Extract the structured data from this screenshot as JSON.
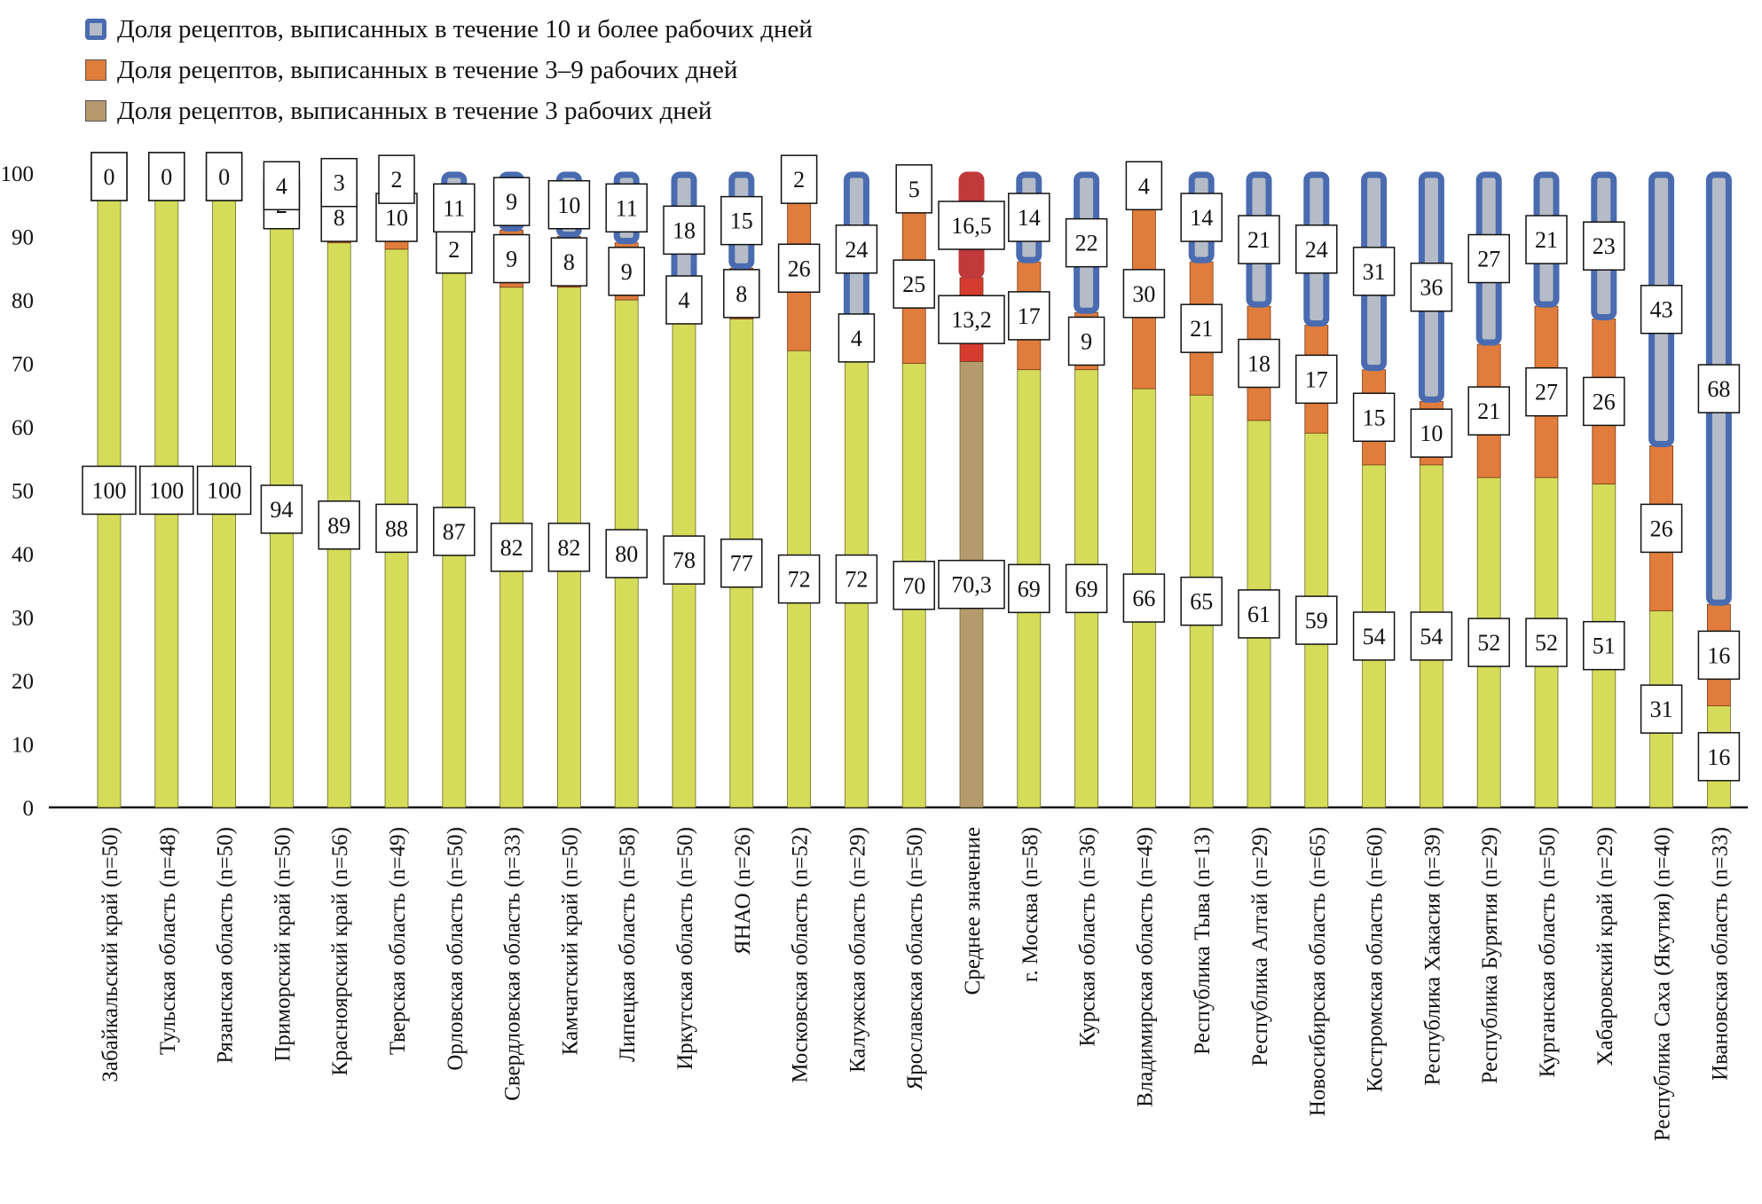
{
  "chart_data": {
    "type": "bar",
    "stacked": true,
    "ylim": [
      0,
      100
    ],
    "yticks": [
      0,
      10,
      20,
      30,
      40,
      50,
      60,
      70,
      80,
      90,
      100
    ],
    "grid": false,
    "legend_position": "top-left",
    "categories": [
      "Забайкальский край (n=50)",
      "Тульская область (n=48)",
      "Рязанская область (n=50)",
      "Приморский край (n=50)",
      "Красноярский край (n=56)",
      "Тверская область (n=49)",
      "Орловская область (n=50)",
      "Свердловская область (n=33)",
      "Камчатский край (n=50)",
      "Липецкая область (n=58)",
      "Иркутская область (n=50)",
      "ЯНАО (n=26)",
      "Московская область (n=52)",
      "Калужская область (n=29)",
      "Ярославская область (n=50)",
      "Среднее значение",
      "г. Москва (n=58)",
      "Курская область (n=36)",
      "Владимирская область (n=49)",
      "Республика Тыва (n=13)",
      "Республика Алтай (n=29)",
      "Новосибирская область (n=65)",
      "Костромская область (n=60)",
      "Республика Хакасия (n=39)",
      "Республика Бурятия (n=29)",
      "Курганская область (n=50)",
      "Хабаровский край (n=29)",
      "Республика Саха (Якутия) (n=40)",
      "Ивановская область (n=33)"
    ],
    "series": [
      {
        "name": "Доля рецептов, выписанных в течение 3 рабочих дней",
        "values": [
          100,
          100,
          100,
          94,
          89,
          88,
          87,
          82,
          82,
          80,
          78,
          77,
          72,
          72,
          70,
          70.3,
          69,
          69,
          66,
          65,
          61,
          59,
          54,
          54,
          52,
          52,
          51,
          31,
          16
        ],
        "labels": [
          "100",
          "100",
          "100",
          "94",
          "89",
          "88",
          "87",
          "82",
          "82",
          "80",
          "78",
          "77",
          "72",
          "72",
          "70",
          "70,3",
          "69",
          "69",
          "66",
          "65",
          "61",
          "59",
          "54",
          "54",
          "52",
          "52",
          "51",
          "31",
          "16"
        ],
        "color": "#d4dc5a",
        "mean_color": "#b59a6e"
      },
      {
        "name": "Доля рецептов, выписанных в течение 3–9 рабочих дней",
        "values": [
          0,
          0,
          0,
          2,
          8,
          10,
          2,
          9,
          8,
          9,
          4,
          8,
          26,
          4,
          25,
          13.2,
          17,
          9,
          30,
          21,
          18,
          17,
          15,
          10,
          21,
          27,
          26,
          26,
          16
        ],
        "labels": [
          "0",
          "0",
          "0",
          "2",
          "8",
          "10",
          "2",
          "9",
          "8",
          "9",
          "4",
          "8",
          "26",
          "4",
          "25",
          "13,2",
          "17",
          "9",
          "30",
          "21",
          "18",
          "17",
          "15",
          "10",
          "21",
          "27",
          "26",
          "26",
          "16"
        ],
        "color": "#e07c3c",
        "mean_color": "#d63b2f"
      },
      {
        "name": "Доля рецептов, выписанных в течение 10 и более рабочих дней",
        "values": [
          0,
          0,
          0,
          4,
          3,
          2,
          11,
          9,
          10,
          11,
          18,
          15,
          2,
          24,
          5,
          16.5,
          14,
          22,
          4,
          14,
          21,
          24,
          31,
          36,
          27,
          21,
          23,
          43,
          68
        ],
        "labels": [
          "0",
          "0",
          "0",
          "4",
          "3",
          "2",
          "11",
          "9",
          "10",
          "11",
          "18",
          "15",
          "2",
          "24",
          "5",
          "16,5",
          "14",
          "22",
          "4",
          "14",
          "21",
          "24",
          "31",
          "36",
          "27",
          "21",
          "23",
          "43",
          "68"
        ],
        "color": "#4a6bb0",
        "inner_color": "#b5bcc8",
        "mean_color": "#c0393b"
      }
    ],
    "legend": [
      "Доля рецептов, выписанных в течение 10 и более рабочих дней",
      "Доля рецептов, выписанных в течение 3–9 рабочих дней",
      "Доля рецептов, выписанных в течение 3 рабочих дней"
    ],
    "legend_colors": [
      "#4a6bb0",
      "#e07c3c",
      "#b59a6e"
    ]
  }
}
